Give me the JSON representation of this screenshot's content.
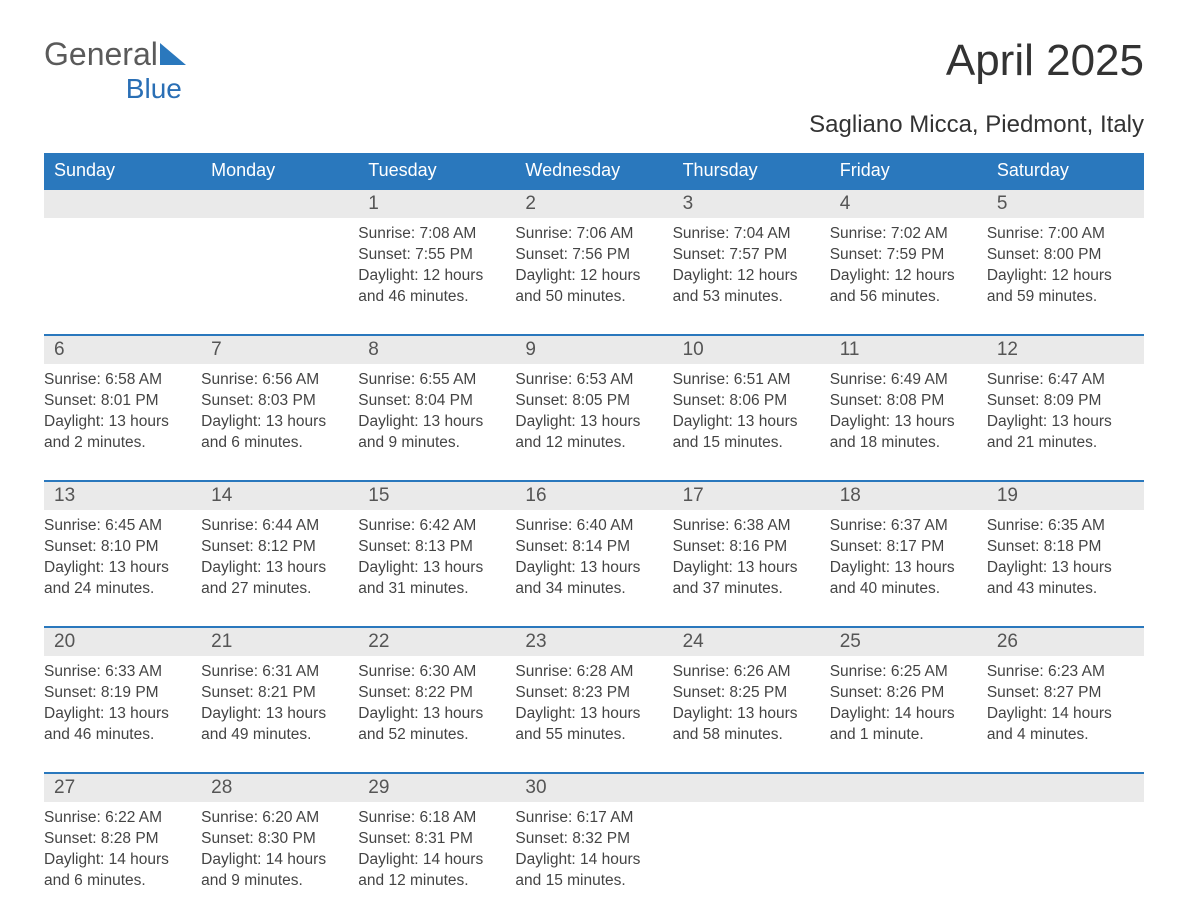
{
  "logo": {
    "text_general": "General",
    "text_blue": "Blue",
    "icon_color": "#2a78bd"
  },
  "title": "April 2025",
  "location": "Sagliano Micca, Piedmont, Italy",
  "header_bg": "#2a78bd",
  "header_text_color": "#ffffff",
  "day_bar_bg": "#eaeaea",
  "page_bg": "#ffffff",
  "text_color": "#333333",
  "content_fontsize": 15.5,
  "day_number_fontsize": 19,
  "header_fontsize": 18,
  "title_fontsize": 44,
  "location_fontsize": 24,
  "columns": [
    "Sunday",
    "Monday",
    "Tuesday",
    "Wednesday",
    "Thursday",
    "Friday",
    "Saturday"
  ],
  "weeks": [
    [
      null,
      null,
      {
        "n": "1",
        "sunrise": "Sunrise: 7:08 AM",
        "sunset": "Sunset: 7:55 PM",
        "dl1": "Daylight: 12 hours",
        "dl2": "and 46 minutes."
      },
      {
        "n": "2",
        "sunrise": "Sunrise: 7:06 AM",
        "sunset": "Sunset: 7:56 PM",
        "dl1": "Daylight: 12 hours",
        "dl2": "and 50 minutes."
      },
      {
        "n": "3",
        "sunrise": "Sunrise: 7:04 AM",
        "sunset": "Sunset: 7:57 PM",
        "dl1": "Daylight: 12 hours",
        "dl2": "and 53 minutes."
      },
      {
        "n": "4",
        "sunrise": "Sunrise: 7:02 AM",
        "sunset": "Sunset: 7:59 PM",
        "dl1": "Daylight: 12 hours",
        "dl2": "and 56 minutes."
      },
      {
        "n": "5",
        "sunrise": "Sunrise: 7:00 AM",
        "sunset": "Sunset: 8:00 PM",
        "dl1": "Daylight: 12 hours",
        "dl2": "and 59 minutes."
      }
    ],
    [
      {
        "n": "6",
        "sunrise": "Sunrise: 6:58 AM",
        "sunset": "Sunset: 8:01 PM",
        "dl1": "Daylight: 13 hours",
        "dl2": "and 2 minutes."
      },
      {
        "n": "7",
        "sunrise": "Sunrise: 6:56 AM",
        "sunset": "Sunset: 8:03 PM",
        "dl1": "Daylight: 13 hours",
        "dl2": "and 6 minutes."
      },
      {
        "n": "8",
        "sunrise": "Sunrise: 6:55 AM",
        "sunset": "Sunset: 8:04 PM",
        "dl1": "Daylight: 13 hours",
        "dl2": "and 9 minutes."
      },
      {
        "n": "9",
        "sunrise": "Sunrise: 6:53 AM",
        "sunset": "Sunset: 8:05 PM",
        "dl1": "Daylight: 13 hours",
        "dl2": "and 12 minutes."
      },
      {
        "n": "10",
        "sunrise": "Sunrise: 6:51 AM",
        "sunset": "Sunset: 8:06 PM",
        "dl1": "Daylight: 13 hours",
        "dl2": "and 15 minutes."
      },
      {
        "n": "11",
        "sunrise": "Sunrise: 6:49 AM",
        "sunset": "Sunset: 8:08 PM",
        "dl1": "Daylight: 13 hours",
        "dl2": "and 18 minutes."
      },
      {
        "n": "12",
        "sunrise": "Sunrise: 6:47 AM",
        "sunset": "Sunset: 8:09 PM",
        "dl1": "Daylight: 13 hours",
        "dl2": "and 21 minutes."
      }
    ],
    [
      {
        "n": "13",
        "sunrise": "Sunrise: 6:45 AM",
        "sunset": "Sunset: 8:10 PM",
        "dl1": "Daylight: 13 hours",
        "dl2": "and 24 minutes."
      },
      {
        "n": "14",
        "sunrise": "Sunrise: 6:44 AM",
        "sunset": "Sunset: 8:12 PM",
        "dl1": "Daylight: 13 hours",
        "dl2": "and 27 minutes."
      },
      {
        "n": "15",
        "sunrise": "Sunrise: 6:42 AM",
        "sunset": "Sunset: 8:13 PM",
        "dl1": "Daylight: 13 hours",
        "dl2": "and 31 minutes."
      },
      {
        "n": "16",
        "sunrise": "Sunrise: 6:40 AM",
        "sunset": "Sunset: 8:14 PM",
        "dl1": "Daylight: 13 hours",
        "dl2": "and 34 minutes."
      },
      {
        "n": "17",
        "sunrise": "Sunrise: 6:38 AM",
        "sunset": "Sunset: 8:16 PM",
        "dl1": "Daylight: 13 hours",
        "dl2": "and 37 minutes."
      },
      {
        "n": "18",
        "sunrise": "Sunrise: 6:37 AM",
        "sunset": "Sunset: 8:17 PM",
        "dl1": "Daylight: 13 hours",
        "dl2": "and 40 minutes."
      },
      {
        "n": "19",
        "sunrise": "Sunrise: 6:35 AM",
        "sunset": "Sunset: 8:18 PM",
        "dl1": "Daylight: 13 hours",
        "dl2": "and 43 minutes."
      }
    ],
    [
      {
        "n": "20",
        "sunrise": "Sunrise: 6:33 AM",
        "sunset": "Sunset: 8:19 PM",
        "dl1": "Daylight: 13 hours",
        "dl2": "and 46 minutes."
      },
      {
        "n": "21",
        "sunrise": "Sunrise: 6:31 AM",
        "sunset": "Sunset: 8:21 PM",
        "dl1": "Daylight: 13 hours",
        "dl2": "and 49 minutes."
      },
      {
        "n": "22",
        "sunrise": "Sunrise: 6:30 AM",
        "sunset": "Sunset: 8:22 PM",
        "dl1": "Daylight: 13 hours",
        "dl2": "and 52 minutes."
      },
      {
        "n": "23",
        "sunrise": "Sunrise: 6:28 AM",
        "sunset": "Sunset: 8:23 PM",
        "dl1": "Daylight: 13 hours",
        "dl2": "and 55 minutes."
      },
      {
        "n": "24",
        "sunrise": "Sunrise: 6:26 AM",
        "sunset": "Sunset: 8:25 PM",
        "dl1": "Daylight: 13 hours",
        "dl2": "and 58 minutes."
      },
      {
        "n": "25",
        "sunrise": "Sunrise: 6:25 AM",
        "sunset": "Sunset: 8:26 PM",
        "dl1": "Daylight: 14 hours",
        "dl2": "and 1 minute."
      },
      {
        "n": "26",
        "sunrise": "Sunrise: 6:23 AM",
        "sunset": "Sunset: 8:27 PM",
        "dl1": "Daylight: 14 hours",
        "dl2": "and 4 minutes."
      }
    ],
    [
      {
        "n": "27",
        "sunrise": "Sunrise: 6:22 AM",
        "sunset": "Sunset: 8:28 PM",
        "dl1": "Daylight: 14 hours",
        "dl2": "and 6 minutes."
      },
      {
        "n": "28",
        "sunrise": "Sunrise: 6:20 AM",
        "sunset": "Sunset: 8:30 PM",
        "dl1": "Daylight: 14 hours",
        "dl2": "and 9 minutes."
      },
      {
        "n": "29",
        "sunrise": "Sunrise: 6:18 AM",
        "sunset": "Sunset: 8:31 PM",
        "dl1": "Daylight: 14 hours",
        "dl2": "and 12 minutes."
      },
      {
        "n": "30",
        "sunrise": "Sunrise: 6:17 AM",
        "sunset": "Sunset: 8:32 PM",
        "dl1": "Daylight: 14 hours",
        "dl2": "and 15 minutes."
      },
      null,
      null,
      null
    ]
  ]
}
